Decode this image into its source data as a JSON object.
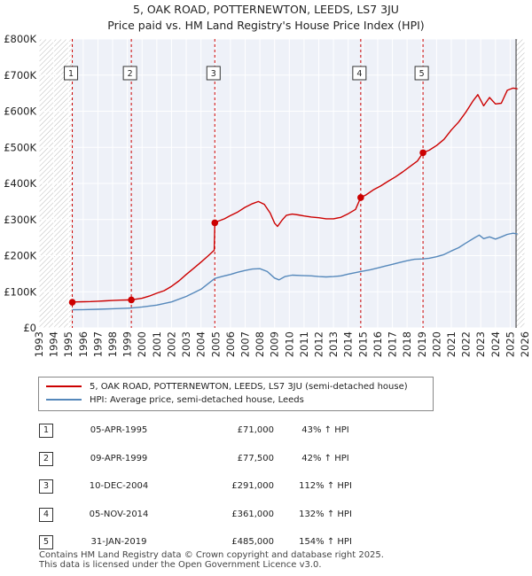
{
  "chart_data": {
    "type": "line",
    "title": "5, OAK ROAD, POTTERNEWTON, LEEDS, LS7 3JU",
    "subtitle": "Price paid vs. HM Land Registry's House Price Index (HPI)",
    "xlabel": "",
    "ylabel": "",
    "xlim": [
      1993,
      2026
    ],
    "ylim": [
      0,
      800000
    ],
    "y_ticks": [
      {
        "value": 0,
        "label": "£0"
      },
      {
        "value": 100000,
        "label": "£100K"
      },
      {
        "value": 200000,
        "label": "£200K"
      },
      {
        "value": 300000,
        "label": "£300K"
      },
      {
        "value": 400000,
        "label": "£400K"
      },
      {
        "value": 500000,
        "label": "£500K"
      },
      {
        "value": 600000,
        "label": "£600K"
      },
      {
        "value": 700000,
        "label": "£700K"
      },
      {
        "value": 800000,
        "label": "£800K"
      }
    ],
    "x_ticks": [
      "1993",
      "1994",
      "1995",
      "1996",
      "1997",
      "1998",
      "1999",
      "2000",
      "2001",
      "2002",
      "2003",
      "2004",
      "2005",
      "2006",
      "2007",
      "2008",
      "2009",
      "2010",
      "2011",
      "2012",
      "2013",
      "2014",
      "2015",
      "2016",
      "2017",
      "2018",
      "2019",
      "2020",
      "2021",
      "2022",
      "2023",
      "2024",
      "2025",
      "2026"
    ],
    "hatched_ranges": [
      [
        1993,
        1995.26
      ],
      [
        2025.4,
        2026
      ]
    ],
    "series": [
      {
        "name": "5, OAK ROAD, POTTERNEWTON, LEEDS, LS7 3JU (semi-detached house)",
        "color": "#cc0000",
        "points": [
          [
            1995.26,
            71000
          ],
          [
            1995.5,
            71800
          ],
          [
            1996,
            72500
          ],
          [
            1996.5,
            73000
          ],
          [
            1997,
            73800
          ],
          [
            1997.5,
            74800
          ],
          [
            1998,
            75800
          ],
          [
            1998.5,
            76800
          ],
          [
            1999.0,
            77200
          ],
          [
            1999.27,
            77500
          ],
          [
            1999.5,
            79000
          ],
          [
            2000,
            82000
          ],
          [
            2000.5,
            88000
          ],
          [
            2001,
            96000
          ],
          [
            2001.5,
            103000
          ],
          [
            2002,
            115000
          ],
          [
            2002.5,
            130000
          ],
          [
            2003,
            148000
          ],
          [
            2003.5,
            165000
          ],
          [
            2004,
            182000
          ],
          [
            2004.5,
            200000
          ],
          [
            2004.9,
            215000
          ],
          [
            2004.94,
            291000
          ],
          [
            2005.2,
            296000
          ],
          [
            2005.6,
            302000
          ],
          [
            2006,
            311000
          ],
          [
            2006.5,
            321000
          ],
          [
            2007,
            334000
          ],
          [
            2007.5,
            344000
          ],
          [
            2007.9,
            350000
          ],
          [
            2008.3,
            342000
          ],
          [
            2008.7,
            318000
          ],
          [
            2009.0,
            290000
          ],
          [
            2009.2,
            281000
          ],
          [
            2009.5,
            298000
          ],
          [
            2009.8,
            312000
          ],
          [
            2010.2,
            315000
          ],
          [
            2010.6,
            313000
          ],
          [
            2011,
            310000
          ],
          [
            2011.5,
            307000
          ],
          [
            2012,
            305000
          ],
          [
            2012.5,
            302000
          ],
          [
            2013,
            302000
          ],
          [
            2013.5,
            306000
          ],
          [
            2014,
            316000
          ],
          [
            2014.5,
            328000
          ],
          [
            2014.85,
            361000
          ],
          [
            2015.2,
            368000
          ],
          [
            2015.7,
            382000
          ],
          [
            2016.2,
            393000
          ],
          [
            2016.7,
            406000
          ],
          [
            2017.2,
            418000
          ],
          [
            2017.7,
            432000
          ],
          [
            2018.2,
            447000
          ],
          [
            2018.7,
            462000
          ],
          [
            2019.08,
            485000
          ],
          [
            2019.5,
            492000
          ],
          [
            2020,
            505000
          ],
          [
            2020.5,
            522000
          ],
          [
            2021,
            548000
          ],
          [
            2021.5,
            570000
          ],
          [
            2022,
            598000
          ],
          [
            2022.5,
            630000
          ],
          [
            2022.8,
            646000
          ],
          [
            2023.2,
            615000
          ],
          [
            2023.6,
            638000
          ],
          [
            2024,
            620000
          ],
          [
            2024.4,
            622000
          ],
          [
            2024.8,
            658000
          ],
          [
            2025.2,
            664000
          ],
          [
            2025.5,
            662000
          ]
        ]
      },
      {
        "name": "HPI: Average price, semi-detached house, Leeds",
        "color": "#5588bb",
        "points": [
          [
            1995.26,
            50000
          ],
          [
            1996,
            50500
          ],
          [
            1997,
            51500
          ],
          [
            1998,
            53000
          ],
          [
            1999,
            54500
          ],
          [
            1999.27,
            55000
          ],
          [
            2000,
            58000
          ],
          [
            2001,
            63000
          ],
          [
            2002,
            72000
          ],
          [
            2003,
            87000
          ],
          [
            2004,
            107000
          ],
          [
            2004.94,
            137000
          ],
          [
            2005.5,
            143000
          ],
          [
            2006,
            148000
          ],
          [
            2006.5,
            154000
          ],
          [
            2007,
            159000
          ],
          [
            2007.5,
            163000
          ],
          [
            2008,
            164000
          ],
          [
            2008.5,
            156000
          ],
          [
            2009,
            138000
          ],
          [
            2009.3,
            133000
          ],
          [
            2009.7,
            142000
          ],
          [
            2010.2,
            146000
          ],
          [
            2010.8,
            145000
          ],
          [
            2011.5,
            144000
          ],
          [
            2012,
            142000
          ],
          [
            2012.5,
            141000
          ],
          [
            2013,
            142000
          ],
          [
            2013.5,
            144000
          ],
          [
            2014,
            149000
          ],
          [
            2014.85,
            156000
          ],
          [
            2015.5,
            161000
          ],
          [
            2016,
            166000
          ],
          [
            2016.5,
            171000
          ],
          [
            2017,
            176000
          ],
          [
            2017.5,
            181000
          ],
          [
            2018,
            186000
          ],
          [
            2018.5,
            190000
          ],
          [
            2019.08,
            191000
          ],
          [
            2019.5,
            193000
          ],
          [
            2020,
            197000
          ],
          [
            2020.5,
            203000
          ],
          [
            2021,
            213000
          ],
          [
            2021.5,
            222000
          ],
          [
            2022,
            235000
          ],
          [
            2022.6,
            250000
          ],
          [
            2022.9,
            257000
          ],
          [
            2023.2,
            247000
          ],
          [
            2023.6,
            252000
          ],
          [
            2024,
            246000
          ],
          [
            2024.4,
            252000
          ],
          [
            2024.8,
            259000
          ],
          [
            2025.2,
            262000
          ],
          [
            2025.5,
            260000
          ]
        ]
      }
    ],
    "annotations": [
      {
        "label": "1",
        "x": 1995.26,
        "y": 71000
      },
      {
        "label": "2",
        "x": 1999.27,
        "y": 77500
      },
      {
        "label": "3",
        "x": 2004.94,
        "y": 291000
      },
      {
        "label": "4",
        "x": 2014.85,
        "y": 361000
      },
      {
        "label": "5",
        "x": 2019.08,
        "y": 485000
      }
    ]
  },
  "legend": [
    {
      "label": "5, OAK ROAD, POTTERNEWTON, LEEDS, LS7 3JU (semi-detached house)",
      "color": "#cc0000"
    },
    {
      "label": "HPI: Average price, semi-detached house, Leeds",
      "color": "#5588bb"
    }
  ],
  "transactions": [
    {
      "num": "1",
      "date": "05-APR-1995",
      "price": "£71,000",
      "hpi": "43% ↑ HPI"
    },
    {
      "num": "2",
      "date": "09-APR-1999",
      "price": "£77,500",
      "hpi": "42% ↑ HPI"
    },
    {
      "num": "3",
      "date": "10-DEC-2004",
      "price": "£291,000",
      "hpi": "112% ↑ HPI"
    },
    {
      "num": "4",
      "date": "05-NOV-2014",
      "price": "£361,000",
      "hpi": "132% ↑ HPI"
    },
    {
      "num": "5",
      "date": "31-JAN-2019",
      "price": "£485,000",
      "hpi": "154% ↑ HPI"
    }
  ],
  "footer": {
    "line1": "Contains HM Land Registry data © Crown copyright and database right 2025.",
    "line2": "This data is licensed under the Open Government Licence v3.0."
  }
}
